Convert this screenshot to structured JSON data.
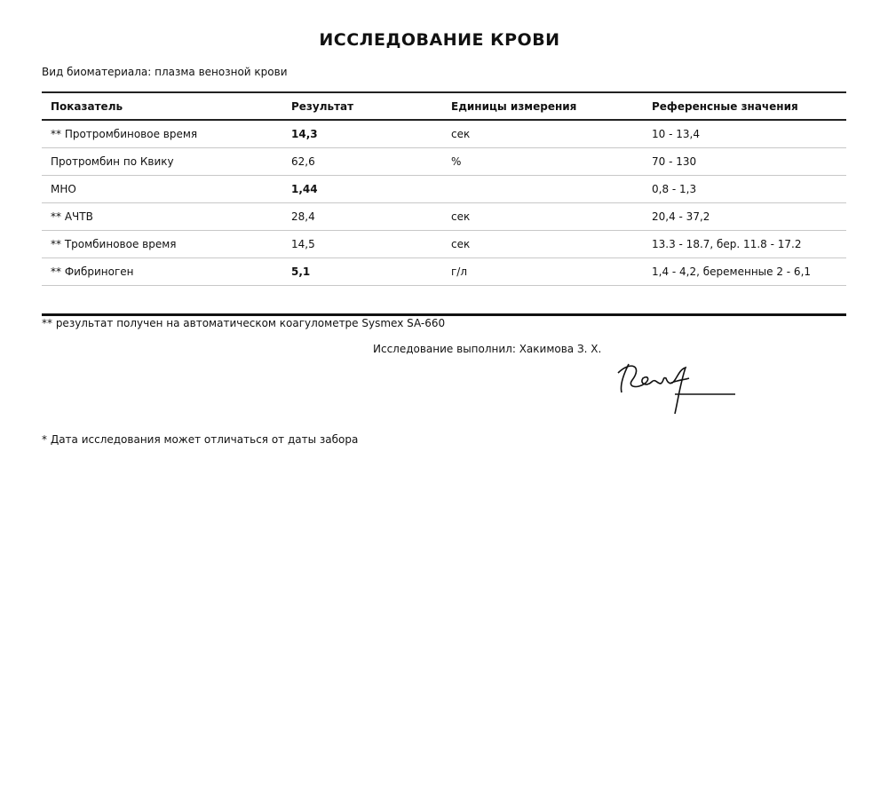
{
  "title": "ИССЛЕДОВАНИЕ КРОВИ",
  "biomaterial": "Вид биоматериала: плазма венозной крови",
  "table": {
    "headers": [
      "Показатель",
      "Результат",
      "Единицы измерения",
      "Референсные значения"
    ],
    "rows": [
      {
        "name": "** Протромбиновое время",
        "result": "14,3",
        "bold": true,
        "unit": "сек",
        "ref": "10 - 13,4"
      },
      {
        "name": "Протромбин по Квику",
        "result": "62,6",
        "bold": false,
        "unit": "%",
        "ref": "70 - 130"
      },
      {
        "name": "МНО",
        "result": "1,44",
        "bold": true,
        "unit": "",
        "ref": "0,8 - 1,3"
      },
      {
        "name": "** АЧТВ",
        "result": "28,4",
        "bold": false,
        "unit": "сек",
        "ref": "20,4 - 37,2"
      },
      {
        "name": "** Тромбиновое время",
        "result": "14,5",
        "bold": false,
        "unit": "сек",
        "ref": "13.3 - 18.7, бер. 11.8 - 17.2"
      },
      {
        "name": "** Фибриноген",
        "result": "5,1",
        "bold": true,
        "unit": "г/л",
        "ref": "1,4 - 4,2, беременные 2 - 6,1"
      }
    ]
  },
  "footnote": "** результат получен на автоматическом коагулометре Sysmex SA-660",
  "performed_by": "Исследование выполнил: Хакимова З. Х.",
  "signature": "Хак",
  "date_note": "* Дата исследования может отличаться от даты забора"
}
